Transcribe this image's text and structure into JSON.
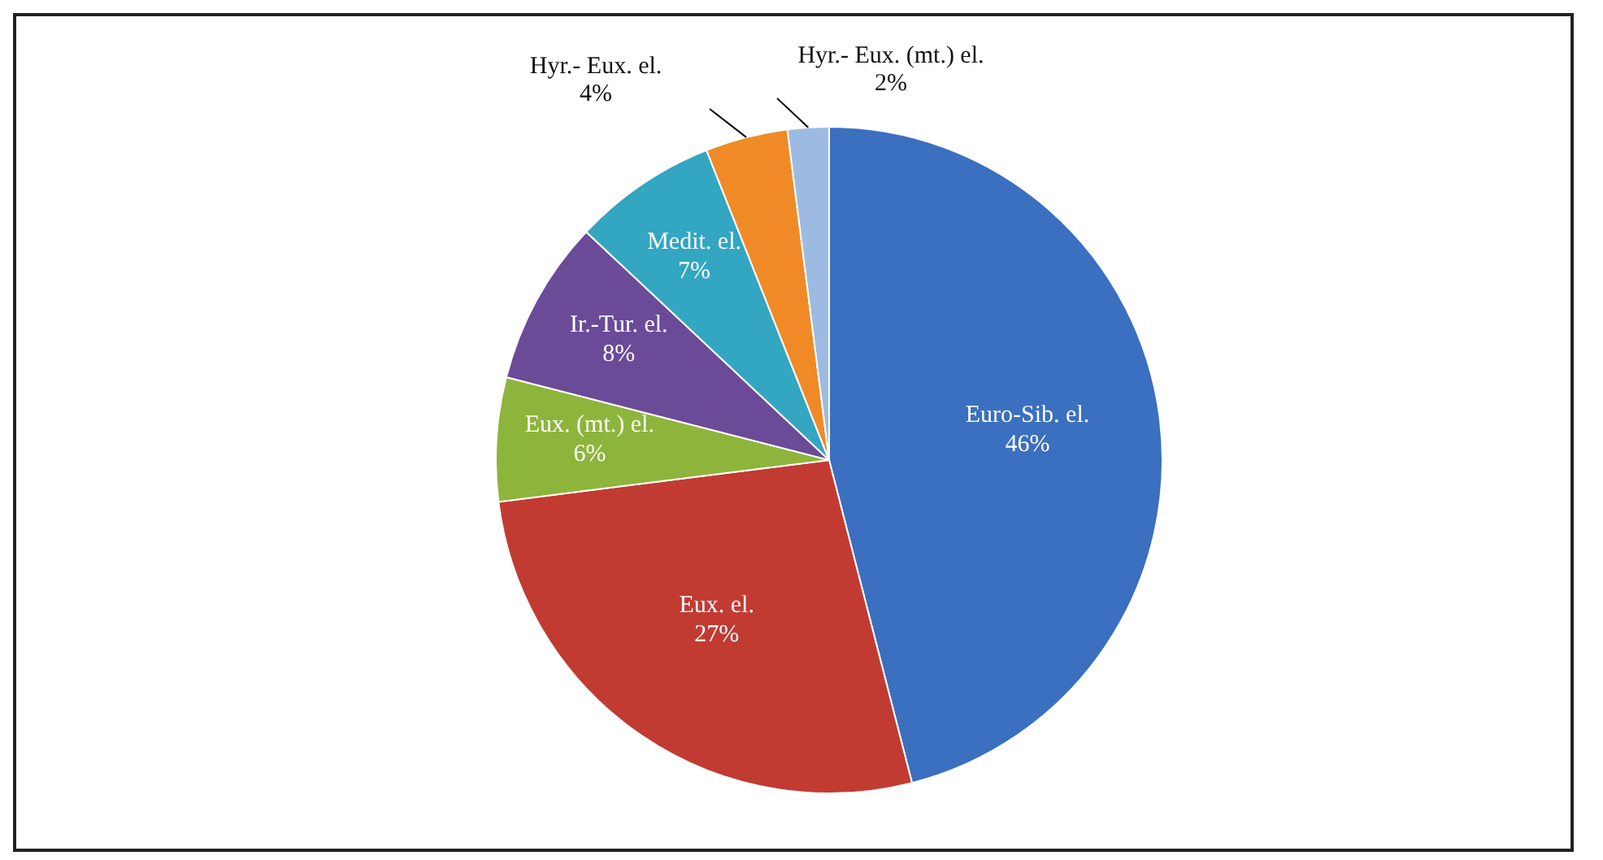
{
  "chart_data": {
    "type": "pie",
    "categories": [
      "Euro-Sib. el.",
      "Eux. el.",
      "Eux. (mt.) el.",
      "Ir.-Tur. el.",
      "Medit. el.",
      "Hyr.- Eux. el.",
      "Hyr.- Eux. (mt.) el."
    ],
    "values": [
      46,
      27,
      6,
      8,
      7,
      4,
      2
    ],
    "value_labels": [
      "46%",
      "27%",
      "6%",
      "8%",
      "7%",
      "4%",
      "2%"
    ],
    "colors": [
      "#3b6fbf",
      "#c23b32",
      "#8db53c",
      "#6b4a98",
      "#33a6c2",
      "#f08a26",
      "#9dbbe2"
    ],
    "legend": false
  }
}
